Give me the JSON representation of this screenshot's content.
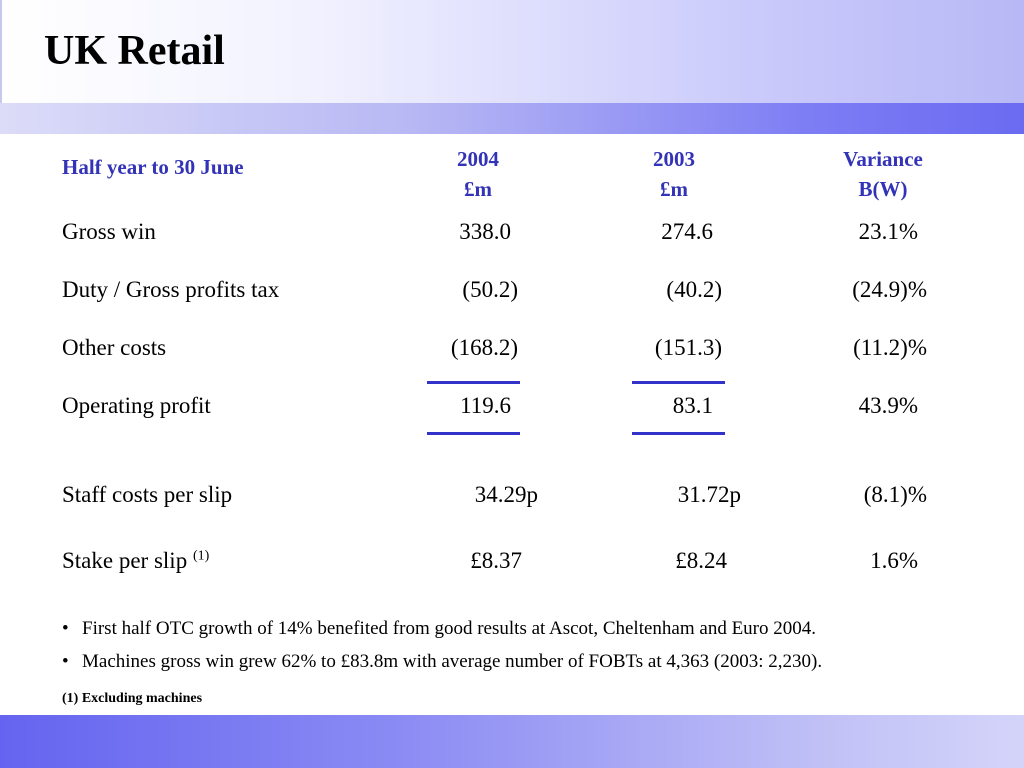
{
  "slide": {
    "title": "UK Retail"
  },
  "table": {
    "period_label": "Half year to 30 June",
    "columns": [
      {
        "line1": "2004",
        "line2": "£m"
      },
      {
        "line1": "2003",
        "line2": "£m"
      },
      {
        "line1": "Variance",
        "line2": "B(W)"
      }
    ],
    "rows": [
      {
        "label": "Gross win",
        "v2004": "338.0",
        "v2003": "274.6",
        "variance": "23.1%"
      },
      {
        "label": "Duty / Gross profits tax",
        "v2004": "(50.2)",
        "v2003": "(40.2)",
        "variance": "(24.9)%"
      },
      {
        "label": "Other costs",
        "v2004": "(168.2)",
        "v2003": "(151.3)",
        "variance": "(11.2)%"
      },
      {
        "label": "Operating profit",
        "v2004": "119.6",
        "v2003": "83.1",
        "variance": "43.9%"
      },
      {
        "label": "Staff costs per slip",
        "v2004": "34.29p",
        "v2003": "31.72p",
        "variance": "(8.1)%"
      },
      {
        "label": "Stake per slip",
        "note_marker": "(1)",
        "v2004": "£8.37",
        "v2003": "£8.24",
        "variance": "1.6%"
      }
    ]
  },
  "bullets": [
    {
      "marker": "•",
      "text": "First half OTC growth of 14% benefited from good results at Ascot, Cheltenham and Euro 2004."
    },
    {
      "marker": "•",
      "text": "Machines gross win grew 62% to £83.8m with average number of FOBTs at 4,363 (2003: 2,230)."
    }
  ],
  "footnote": "(1) Excluding machines",
  "colors": {
    "header_text": "#3333b8",
    "rule": "#3333cc",
    "stripe_dark": "#6b6bf2"
  }
}
